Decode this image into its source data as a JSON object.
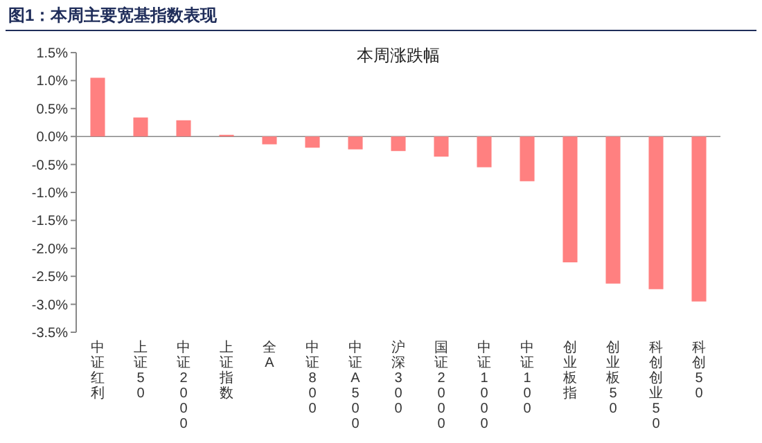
{
  "chart_data": {
    "type": "bar",
    "title": "图1：本周主要宽基指数表现",
    "subtitle": "本周涨跌幅",
    "categories": [
      "中证红利",
      "上证50",
      "中证2000",
      "上证指数",
      "全A",
      "中证800",
      "中证A500",
      "沪深300",
      "国证2000",
      "中证1000",
      "中证100",
      "创业板指",
      "创业板50",
      "科创创业50",
      "科创50"
    ],
    "values": [
      1.05,
      0.34,
      0.29,
      0.03,
      -0.14,
      -0.2,
      -0.23,
      -0.26,
      -0.36,
      -0.55,
      -0.8,
      -2.25,
      -2.63,
      -2.73,
      -2.95
    ],
    "color": "#ff8080",
    "ylim": [
      -3.5,
      1.5
    ],
    "yticks": [
      {
        "value": 1.5,
        "label": "1.5%"
      },
      {
        "value": 1.0,
        "label": "1.0%"
      },
      {
        "value": 0.5,
        "label": "0.5%"
      },
      {
        "value": 0,
        "label": "0.0%"
      },
      {
        "value": -0.5,
        "label": "-0.5%"
      },
      {
        "value": -1.0,
        "label": "-1.0%"
      },
      {
        "value": -1.5,
        "label": "-1.5%"
      },
      {
        "value": -2.0,
        "label": "-2.0%"
      },
      {
        "value": -2.5,
        "label": "-2.5%"
      },
      {
        "value": -3.0,
        "label": "-3.0%"
      },
      {
        "value": -3.5,
        "label": "-3.5%"
      }
    ]
  }
}
